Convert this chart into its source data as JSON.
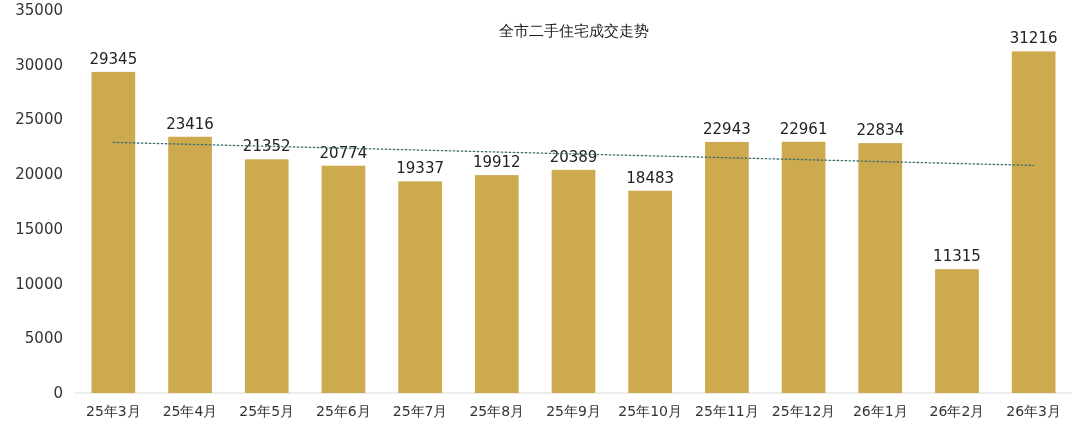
{
  "chart_data": {
    "type": "bar",
    "title": "全市二手住宅成交走势",
    "categories": [
      "25年3月",
      "25年4月",
      "25年5月",
      "25年6月",
      "25年7月",
      "25年8月",
      "25年9月",
      "25年10月",
      "25年11月",
      "25年12月",
      "26年1月",
      "26年2月",
      "26年3月"
    ],
    "series": [
      {
        "color": "#cdaa4e",
        "values": [
          29345,
          23416,
          21352,
          20774,
          19337,
          19912,
          20389,
          18483,
          22943,
          22961,
          22834,
          11315,
          31216
        ],
        "value_labels": [
          "29345",
          "23416",
          "21352",
          "20774",
          "19337",
          "19912",
          "20389",
          "18483",
          "22943",
          "22961",
          "22834",
          "11315",
          "31216"
        ]
      },
      {
        "type": "line",
        "color": "#3d6e70",
        "line_style": "dotted",
        "x": [
          "25年3月",
          "26年3月"
        ],
        "values": [
          22900,
          20800
        ]
      }
    ],
    "ylim": [
      0,
      35000
    ],
    "yticks": [
      0,
      5000,
      10000,
      15000,
      20000,
      25000,
      30000,
      35000
    ],
    "grid": false
  }
}
